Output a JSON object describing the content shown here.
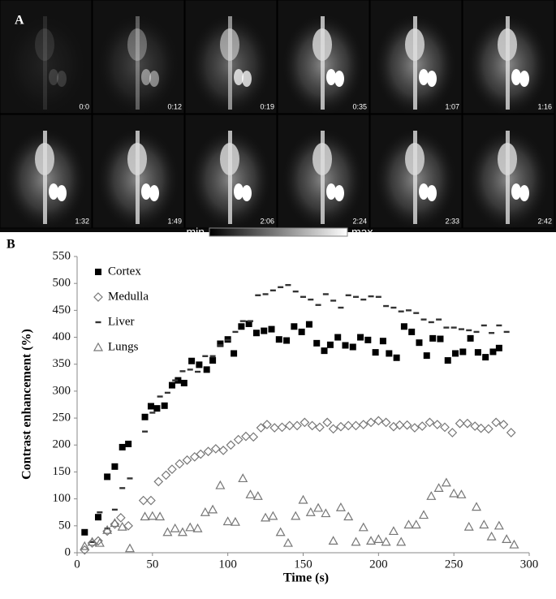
{
  "panel_a": {
    "label": "A",
    "frames": [
      "0:0",
      "0:12",
      "0:19",
      "0:35",
      "1:07",
      "1:16",
      "1:32",
      "1:49",
      "2:06",
      "2:24",
      "2:33",
      "2:42"
    ],
    "colorbar": {
      "min": "min",
      "max": "max"
    }
  },
  "chart_data": {
    "type": "scatter",
    "panel_label": "B",
    "x_label": "Time (s)",
    "y_label": "Contrast enhancement (%)",
    "xlim": [
      0,
      300
    ],
    "xticks": [
      0,
      50,
      100,
      150,
      200,
      250,
      300
    ],
    "ylim": [
      0,
      550
    ],
    "yticks": [
      0,
      50,
      100,
      150,
      200,
      250,
      300,
      350,
      400,
      450,
      500,
      550
    ],
    "legend": "top-left",
    "series": [
      {
        "name": "Cortex",
        "marker": "square",
        "color": "#000000",
        "x": [
          5,
          14,
          20,
          25,
          30,
          34,
          45,
          49,
          53,
          58,
          63,
          67,
          71,
          76,
          81,
          86,
          90,
          95,
          100,
          104,
          109,
          114,
          119,
          124,
          129,
          134,
          139,
          144,
          149,
          154,
          159,
          164,
          168,
          173,
          178,
          183,
          188,
          193,
          198,
          203,
          207,
          212,
          217,
          222,
          227,
          232,
          236,
          241,
          246,
          251,
          256,
          261,
          266,
          271,
          276,
          280
        ],
        "values": [
          38,
          66,
          141,
          160,
          196,
          202,
          252,
          272,
          268,
          273,
          311,
          320,
          315,
          356,
          349,
          340,
          357,
          388,
          396,
          370,
          420,
          425,
          408,
          412,
          415,
          396,
          394,
          420,
          410,
          424,
          389,
          375,
          386,
          400,
          385,
          382,
          400,
          395,
          372,
          393,
          370,
          362,
          420,
          410,
          390,
          366,
          398,
          397,
          357,
          370,
          373,
          398,
          372,
          363,
          373,
          380
        ]
      },
      {
        "name": "Medulla",
        "marker": "diamond",
        "color": "#777777",
        "x": [
          5,
          10,
          14,
          20,
          25,
          29,
          34,
          44,
          49,
          54,
          59,
          63,
          68,
          73,
          78,
          82,
          87,
          92,
          97,
          102,
          107,
          112,
          117,
          122,
          126,
          131,
          136,
          141,
          146,
          151,
          156,
          161,
          166,
          170,
          175,
          180,
          185,
          190,
          195,
          200,
          205,
          210,
          214,
          219,
          224,
          229,
          234,
          239,
          244,
          249,
          254,
          259,
          264,
          268,
          273,
          278,
          283,
          288
        ],
        "values": [
          5,
          18,
          22,
          40,
          53,
          65,
          50,
          97,
          97,
          132,
          144,
          155,
          165,
          172,
          178,
          183,
          188,
          193,
          190,
          200,
          210,
          216,
          215,
          232,
          238,
          232,
          233,
          236,
          236,
          242,
          236,
          233,
          242,
          230,
          234,
          236,
          236,
          238,
          242,
          245,
          242,
          234,
          237,
          237,
          232,
          235,
          242,
          238,
          233,
          223,
          240,
          240,
          235,
          231,
          230,
          242,
          238,
          223
        ]
      },
      {
        "name": "Liver",
        "marker": "dash",
        "color": "#333333",
        "x": [
          10,
          15,
          20,
          25,
          30,
          35,
          45,
          50,
          55,
          60,
          65,
          70,
          75,
          80,
          85,
          90,
          95,
          100,
          105,
          110,
          115,
          120,
          125,
          130,
          135,
          140,
          145,
          150,
          155,
          160,
          165,
          170,
          175,
          180,
          185,
          190,
          195,
          200,
          205,
          210,
          215,
          220,
          225,
          230,
          235,
          240,
          245,
          250,
          255,
          260,
          265,
          270,
          275,
          280,
          285
        ],
        "values": [
          20,
          75,
          45,
          80,
          120,
          138,
          225,
          260,
          290,
          297,
          320,
          337,
          340,
          336,
          365,
          365,
          385,
          395,
          410,
          430,
          430,
          478,
          480,
          487,
          493,
          497,
          485,
          475,
          470,
          460,
          480,
          468,
          455,
          478,
          475,
          470,
          476,
          475,
          458,
          455,
          448,
          450,
          445,
          433,
          428,
          433,
          418,
          418,
          415,
          413,
          410,
          422,
          408,
          422,
          410
        ]
      },
      {
        "name": "Lungs",
        "marker": "triangle",
        "color": "#777777",
        "x": [
          5,
          10,
          15,
          20,
          25,
          30,
          35,
          45,
          50,
          55,
          60,
          65,
          70,
          75,
          80,
          85,
          90,
          95,
          100,
          105,
          110,
          115,
          120,
          125,
          130,
          135,
          140,
          145,
          150,
          155,
          160,
          165,
          170,
          175,
          180,
          185,
          190,
          195,
          200,
          205,
          210,
          215,
          220,
          225,
          230,
          235,
          240,
          245,
          250,
          255,
          260,
          265,
          270,
          275,
          280,
          285,
          290
        ],
        "values": [
          12,
          20,
          18,
          42,
          55,
          48,
          8,
          67,
          68,
          67,
          38,
          45,
          38,
          47,
          45,
          75,
          80,
          125,
          58,
          57,
          138,
          108,
          105,
          65,
          68,
          38,
          18,
          68,
          98,
          75,
          83,
          73,
          22,
          84,
          67,
          20,
          47,
          22,
          25,
          20,
          40,
          20,
          52,
          52,
          70,
          105,
          120,
          130,
          110,
          108,
          48,
          85,
          52,
          30,
          50,
          25,
          15
        ]
      }
    ]
  }
}
